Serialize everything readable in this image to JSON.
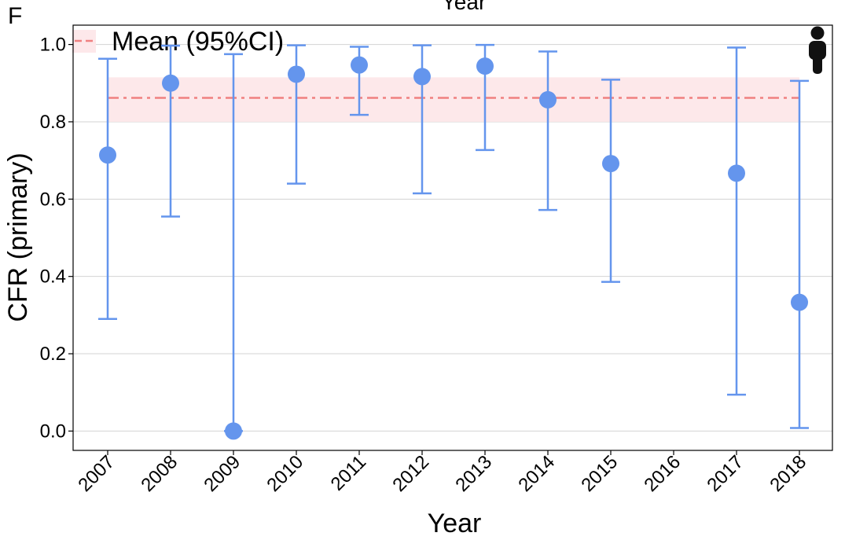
{
  "panel_label": "F",
  "top_title": "Year",
  "icon": "person-silhouette-icon",
  "colors": {
    "points": "#6495ED",
    "mean_line": "#F08080",
    "ci_band": "#FDE8EA",
    "gridline": "#D3D3D3"
  },
  "chart_data": {
    "type": "scatter",
    "xlabel": "Year",
    "ylabel": "CFR (primary)",
    "ylim": [
      -0.05,
      1.05
    ],
    "yticks": [
      "0.0",
      "0.2",
      "0.4",
      "0.6",
      "0.8",
      "1.0"
    ],
    "categories": [
      "2007",
      "2008",
      "2009",
      "2010",
      "2011",
      "2012",
      "2013",
      "2014",
      "2015",
      "2016",
      "2017",
      "2018"
    ],
    "points": [
      {
        "x": "2007",
        "y": 0.714,
        "lower": 0.29,
        "upper": 0.963
      },
      {
        "x": "2008",
        "y": 0.9,
        "lower": 0.555,
        "upper": 0.997
      },
      {
        "x": "2009",
        "y": 0.0,
        "lower": 0.0,
        "upper": 0.975
      },
      {
        "x": "2010",
        "y": 0.923,
        "lower": 0.64,
        "upper": 0.998
      },
      {
        "x": "2011",
        "y": 0.947,
        "lower": 0.818,
        "upper": 0.994
      },
      {
        "x": "2012",
        "y": 0.917,
        "lower": 0.615,
        "upper": 0.998
      },
      {
        "x": "2013",
        "y": 0.944,
        "lower": 0.727,
        "upper": 0.999
      },
      {
        "x": "2014",
        "y": 0.857,
        "lower": 0.572,
        "upper": 0.982
      },
      {
        "x": "2015",
        "y": 0.692,
        "lower": 0.386,
        "upper": 0.909
      },
      {
        "x": "2017",
        "y": 0.667,
        "lower": 0.094,
        "upper": 0.992
      },
      {
        "x": "2018",
        "y": 0.333,
        "lower": 0.008,
        "upper": 0.906
      }
    ],
    "mean": {
      "value": 0.862,
      "lower": 0.8,
      "upper": 0.915
    },
    "legend": {
      "label": "Mean (95%CI)",
      "position": "top-left"
    },
    "grid": "horizontal"
  }
}
